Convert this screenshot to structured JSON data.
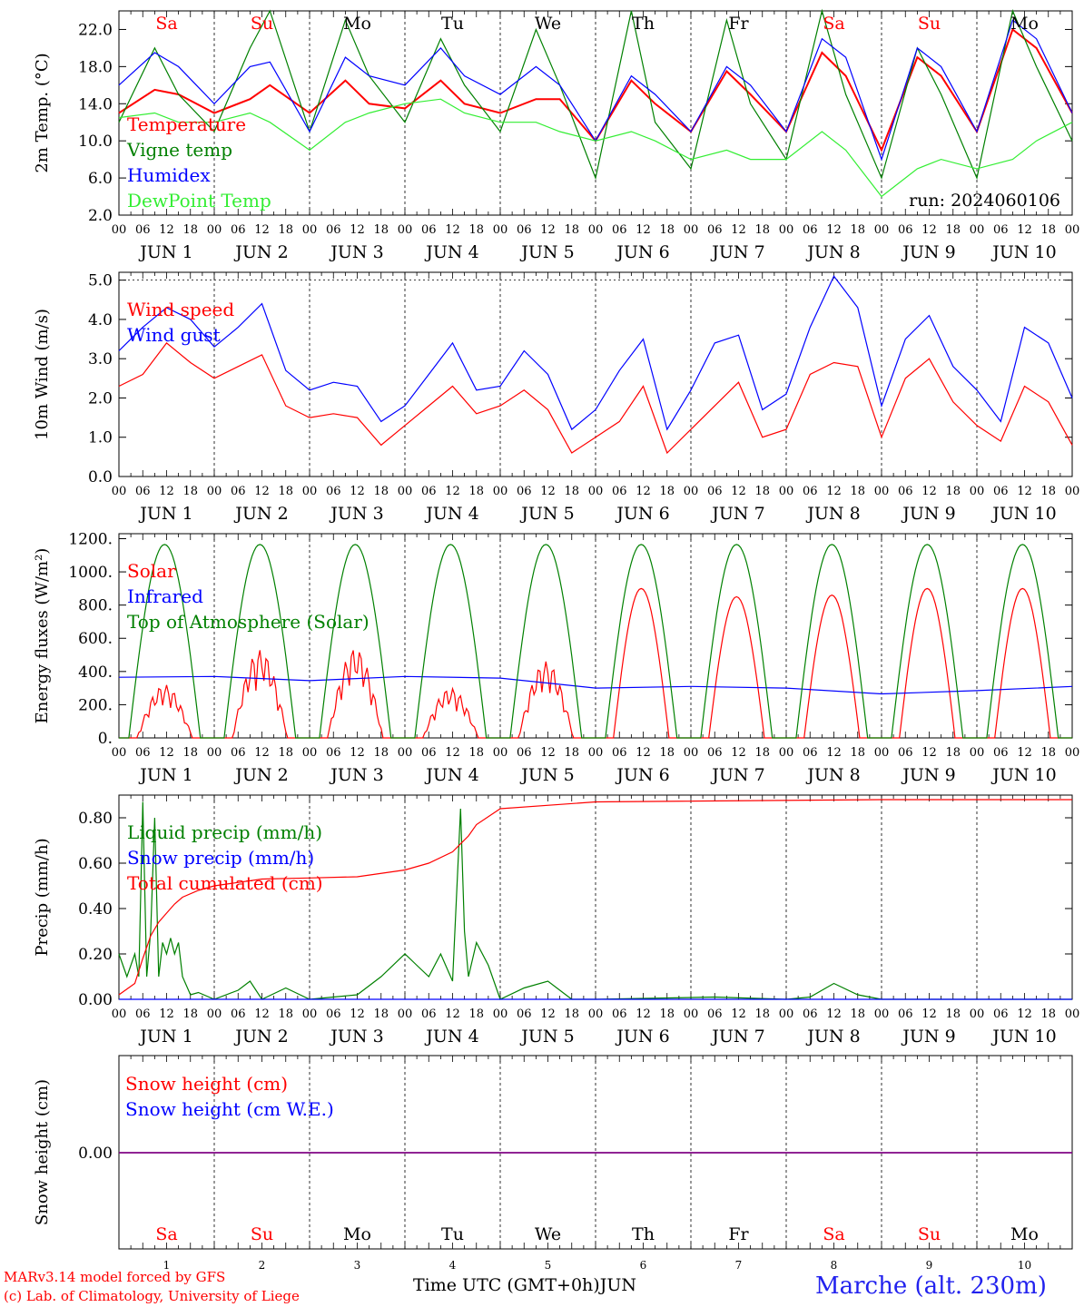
{
  "footer": {
    "credit_line1": "MARv3.14 model forced by GFS",
    "credit_line2": "(c) Lab. of Climatology, University of Liege",
    "time_label": "Time UTC (GMT+0h)",
    "month": "JUN",
    "station": "Marche (alt. 230m)"
  },
  "run_label": "run: 2024060106",
  "colors": {
    "red": "#ff0000",
    "green": "#008000",
    "blue": "#0000ff",
    "lightgreen": "#33ee33",
    "purple": "#800080"
  },
  "x_axis": {
    "hours": [
      "00",
      "06",
      "12",
      "18"
    ],
    "day_labels": [
      "JUN  1",
      "JUN  2",
      "JUN  3",
      "JUN  4",
      "JUN  5",
      "JUN  6",
      "JUN  7",
      "JUN  8",
      "JUN  9",
      "JUN 10"
    ],
    "weekdays": [
      "Sa",
      "Su",
      "Mo",
      "Tu",
      "We",
      "Th",
      "Fr",
      "Sa",
      "Su",
      "Mo"
    ],
    "weekday_colors": [
      "#ff0000",
      "#ff0000",
      "#000000",
      "#000000",
      "#000000",
      "#000000",
      "#000000",
      "#ff0000",
      "#ff0000",
      "#000000"
    ],
    "dates": [
      "1",
      "2",
      "3",
      "4",
      "5",
      "6",
      "7",
      "8",
      "9",
      "10"
    ]
  },
  "chart_data": [
    {
      "type": "line",
      "ylabel": "2m Temp. (°C)",
      "ylim": [
        2,
        24
      ],
      "yticks": [
        "2.0",
        "6.0",
        "10.0",
        "14.0",
        "18.0",
        "22.0"
      ],
      "ytick_values": [
        2,
        6,
        10,
        14,
        18,
        22
      ],
      "x_unit": "hours since JUN 1 00 UTC",
      "xlim": [
        0,
        240
      ],
      "series": [
        {
          "name": "Temperature",
          "color": "#ff0000",
          "x": [
            0,
            9,
            15,
            24,
            33,
            38,
            48,
            57,
            63,
            72,
            81,
            87,
            96,
            105,
            111,
            120,
            129,
            135,
            144,
            153,
            159,
            168,
            177,
            183,
            192,
            201,
            207,
            216,
            225,
            231,
            240
          ],
          "y": [
            13,
            15.5,
            15,
            13,
            14.5,
            16,
            13,
            16.5,
            14,
            13.5,
            16.5,
            14,
            13,
            14.5,
            14.5,
            10,
            16.5,
            14,
            11,
            17.5,
            15,
            11,
            19.5,
            17,
            9,
            19,
            17,
            11,
            22,
            20,
            13
          ]
        },
        {
          "name": "Vigne temp",
          "color": "#008000",
          "x": [
            0,
            9,
            15,
            24,
            33,
            38,
            48,
            57,
            63,
            72,
            81,
            87,
            96,
            105,
            111,
            120,
            129,
            135,
            144,
            153,
            159,
            168,
            177,
            183,
            192,
            201,
            207,
            216,
            225,
            231,
            240
          ],
          "y": [
            12,
            20,
            15,
            11,
            20,
            24,
            11,
            23,
            17,
            12,
            21,
            16,
            11,
            22,
            16,
            6,
            24,
            12,
            7,
            23,
            14,
            8,
            24,
            15,
            6,
            20,
            15,
            6,
            24,
            18,
            10
          ]
        },
        {
          "name": "Humidex",
          "color": "#0000ff",
          "x": [
            0,
            9,
            15,
            24,
            33,
            38,
            48,
            57,
            63,
            72,
            81,
            87,
            96,
            105,
            111,
            120,
            129,
            135,
            144,
            153,
            159,
            168,
            177,
            183,
            192,
            201,
            207,
            216,
            225,
            231,
            240
          ],
          "y": [
            16,
            19.5,
            18,
            14,
            18,
            18.5,
            11,
            19,
            17,
            16,
            20,
            17,
            15,
            18,
            16,
            10,
            17,
            15,
            11,
            18,
            16,
            11,
            21,
            19,
            8,
            20,
            18,
            11,
            23,
            21,
            13
          ]
        },
        {
          "name": "DewPoint Temp",
          "color": "#33ee33",
          "x": [
            0,
            9,
            15,
            24,
            33,
            38,
            48,
            57,
            63,
            72,
            81,
            87,
            96,
            105,
            111,
            120,
            129,
            135,
            144,
            153,
            159,
            168,
            177,
            183,
            192,
            201,
            207,
            216,
            225,
            231,
            240
          ],
          "y": [
            12.5,
            13,
            12,
            12,
            13,
            12,
            9,
            12,
            13,
            14,
            14.5,
            13,
            12,
            12,
            11,
            10,
            11,
            10,
            8,
            9,
            8,
            8,
            11,
            9,
            4,
            7,
            8,
            7,
            8,
            10,
            12
          ]
        }
      ]
    },
    {
      "type": "line",
      "ylabel": "10m Wind (m/s)",
      "ylim": [
        0,
        5.2
      ],
      "yticks": [
        "0.0",
        "1.0",
        "2.0",
        "3.0",
        "4.0",
        "5.0"
      ],
      "ytick_values": [
        0,
        1,
        2,
        3,
        4,
        5
      ],
      "x_unit": "hours since JUN 1 00 UTC",
      "xlim": [
        0,
        240
      ],
      "series": [
        {
          "name": "Wind speed",
          "color": "#ff0000",
          "x": [
            0,
            6,
            12,
            18,
            24,
            30,
            36,
            42,
            48,
            54,
            60,
            66,
            72,
            78,
            84,
            90,
            96,
            102,
            108,
            114,
            120,
            126,
            132,
            138,
            144,
            150,
            156,
            162,
            168,
            174,
            180,
            186,
            192,
            198,
            204,
            210,
            216,
            222,
            228,
            234,
            240
          ],
          "y": [
            2.3,
            2.6,
            3.4,
            2.9,
            2.5,
            2.8,
            3.1,
            1.8,
            1.5,
            1.6,
            1.5,
            0.8,
            1.3,
            1.8,
            2.3,
            1.6,
            1.8,
            2.2,
            1.7,
            0.6,
            1.0,
            1.4,
            2.3,
            0.6,
            1.2,
            1.8,
            2.4,
            1.0,
            1.2,
            2.6,
            2.9,
            2.8,
            1.0,
            2.5,
            3.0,
            1.9,
            1.3,
            0.9,
            2.3,
            1.9,
            0.8
          ]
        },
        {
          "name": "Wind gust",
          "color": "#0000ff",
          "x": [
            0,
            6,
            12,
            18,
            24,
            30,
            36,
            42,
            48,
            54,
            60,
            66,
            72,
            78,
            84,
            90,
            96,
            102,
            108,
            114,
            120,
            126,
            132,
            138,
            144,
            150,
            156,
            162,
            168,
            174,
            180,
            186,
            192,
            198,
            204,
            210,
            216,
            222,
            228,
            234,
            240
          ],
          "y": [
            3.2,
            3.8,
            4.3,
            4.0,
            3.3,
            3.8,
            4.4,
            2.7,
            2.2,
            2.4,
            2.3,
            1.4,
            1.8,
            2.6,
            3.4,
            2.2,
            2.3,
            3.2,
            2.6,
            1.2,
            1.7,
            2.7,
            3.5,
            1.2,
            2.2,
            3.4,
            3.6,
            1.7,
            2.1,
            3.8,
            5.1,
            4.3,
            1.8,
            3.5,
            4.1,
            2.8,
            2.2,
            1.4,
            3.8,
            3.4,
            2.0
          ]
        }
      ]
    },
    {
      "type": "line",
      "ylabel": "Energy fluxes (W/m²)",
      "ylim": [
        0,
        1230
      ],
      "yticks": [
        "0.",
        "200.",
        "400.",
        "600.",
        "800.",
        "1000.",
        "1200."
      ],
      "ytick_values": [
        0,
        200,
        400,
        600,
        800,
        1000,
        1200
      ],
      "x_unit": "hours since JUN 1 00 UTC",
      "xlim": [
        0,
        240
      ],
      "series": [
        {
          "name": "Solar",
          "color": "#ff0000",
          "daily_peak": [
            320,
            530,
            540,
            300,
            460,
            900,
            850,
            860,
            900,
            900
          ]
        },
        {
          "name": "Infrared",
          "color": "#0000ff",
          "x": [
            0,
            24,
            48,
            72,
            96,
            120,
            144,
            168,
            192,
            216,
            240
          ],
          "y": [
            365,
            370,
            345,
            370,
            360,
            300,
            310,
            300,
            265,
            285,
            310
          ]
        },
        {
          "name": "Top of Atmosphere (Solar)",
          "color": "#008000",
          "daily_peak": [
            1165,
            1165,
            1165,
            1165,
            1165,
            1165,
            1165,
            1165,
            1165,
            1165
          ]
        }
      ]
    },
    {
      "type": "line",
      "ylabel": "Precip (mm/h)",
      "ylim": [
        0,
        0.9
      ],
      "yticks": [
        "0.00",
        "0.20",
        "0.40",
        "0.60",
        "0.80"
      ],
      "ytick_values": [
        0,
        0.2,
        0.4,
        0.6,
        0.8
      ],
      "x_unit": "hours since JUN 1 00 UTC",
      "xlim": [
        0,
        240
      ],
      "series": [
        {
          "name": "Liquid precip (mm/h)",
          "color": "#008000",
          "x": [
            0,
            2,
            4,
            5,
            6,
            7,
            8,
            9,
            10,
            11,
            12,
            13,
            14,
            15,
            16,
            18,
            20,
            24,
            30,
            33,
            36,
            42,
            48,
            54,
            60,
            66,
            72,
            75,
            78,
            81,
            84,
            86,
            87,
            88,
            90,
            93,
            96,
            102,
            108,
            114,
            120,
            150,
            168,
            174,
            180,
            186,
            192,
            240
          ],
          "y": [
            0.2,
            0.1,
            0.2,
            0.1,
            0.87,
            0.1,
            0.3,
            0.8,
            0.1,
            0.25,
            0.2,
            0.27,
            0.2,
            0.25,
            0.1,
            0.02,
            0.03,
            0,
            0.04,
            0.08,
            0,
            0.05,
            0,
            0.01,
            0.02,
            0.1,
            0.2,
            0.15,
            0.1,
            0.2,
            0.08,
            0.84,
            0.3,
            0.1,
            0.25,
            0.15,
            0,
            0.05,
            0.08,
            0,
            0,
            0.01,
            0,
            0.01,
            0.07,
            0.02,
            0,
            0
          ]
        },
        {
          "name": "Snow precip (mm/h)",
          "color": "#0000ff",
          "x": [
            0,
            240
          ],
          "y": [
            0,
            0
          ]
        },
        {
          "name": "Total cumulated (cm)",
          "color": "#ff0000",
          "x": [
            0,
            4,
            6,
            8,
            10,
            12,
            14,
            16,
            20,
            24,
            36,
            48,
            60,
            72,
            78,
            84,
            88,
            90,
            96,
            120,
            192,
            240
          ],
          "y": [
            0.02,
            0.07,
            0.18,
            0.28,
            0.34,
            0.38,
            0.42,
            0.45,
            0.48,
            0.5,
            0.53,
            0.535,
            0.54,
            0.57,
            0.6,
            0.65,
            0.72,
            0.77,
            0.84,
            0.87,
            0.88,
            0.88
          ]
        }
      ]
    },
    {
      "type": "line",
      "ylabel": "Snow height (cm)",
      "yticks": [
        "0.00"
      ],
      "ytick_values": [
        0
      ],
      "x_unit": "hours since JUN 1 00 UTC",
      "xlim": [
        0,
        240
      ],
      "series": [
        {
          "name": "Snow height (cm)",
          "color": "#ff0000",
          "x": [
            0,
            240
          ],
          "y": [
            0,
            0
          ]
        },
        {
          "name": "Snow height (cm W.E.)",
          "color": "#0000ff",
          "x": [
            0,
            240
          ],
          "y": [
            0,
            0
          ]
        }
      ]
    }
  ]
}
